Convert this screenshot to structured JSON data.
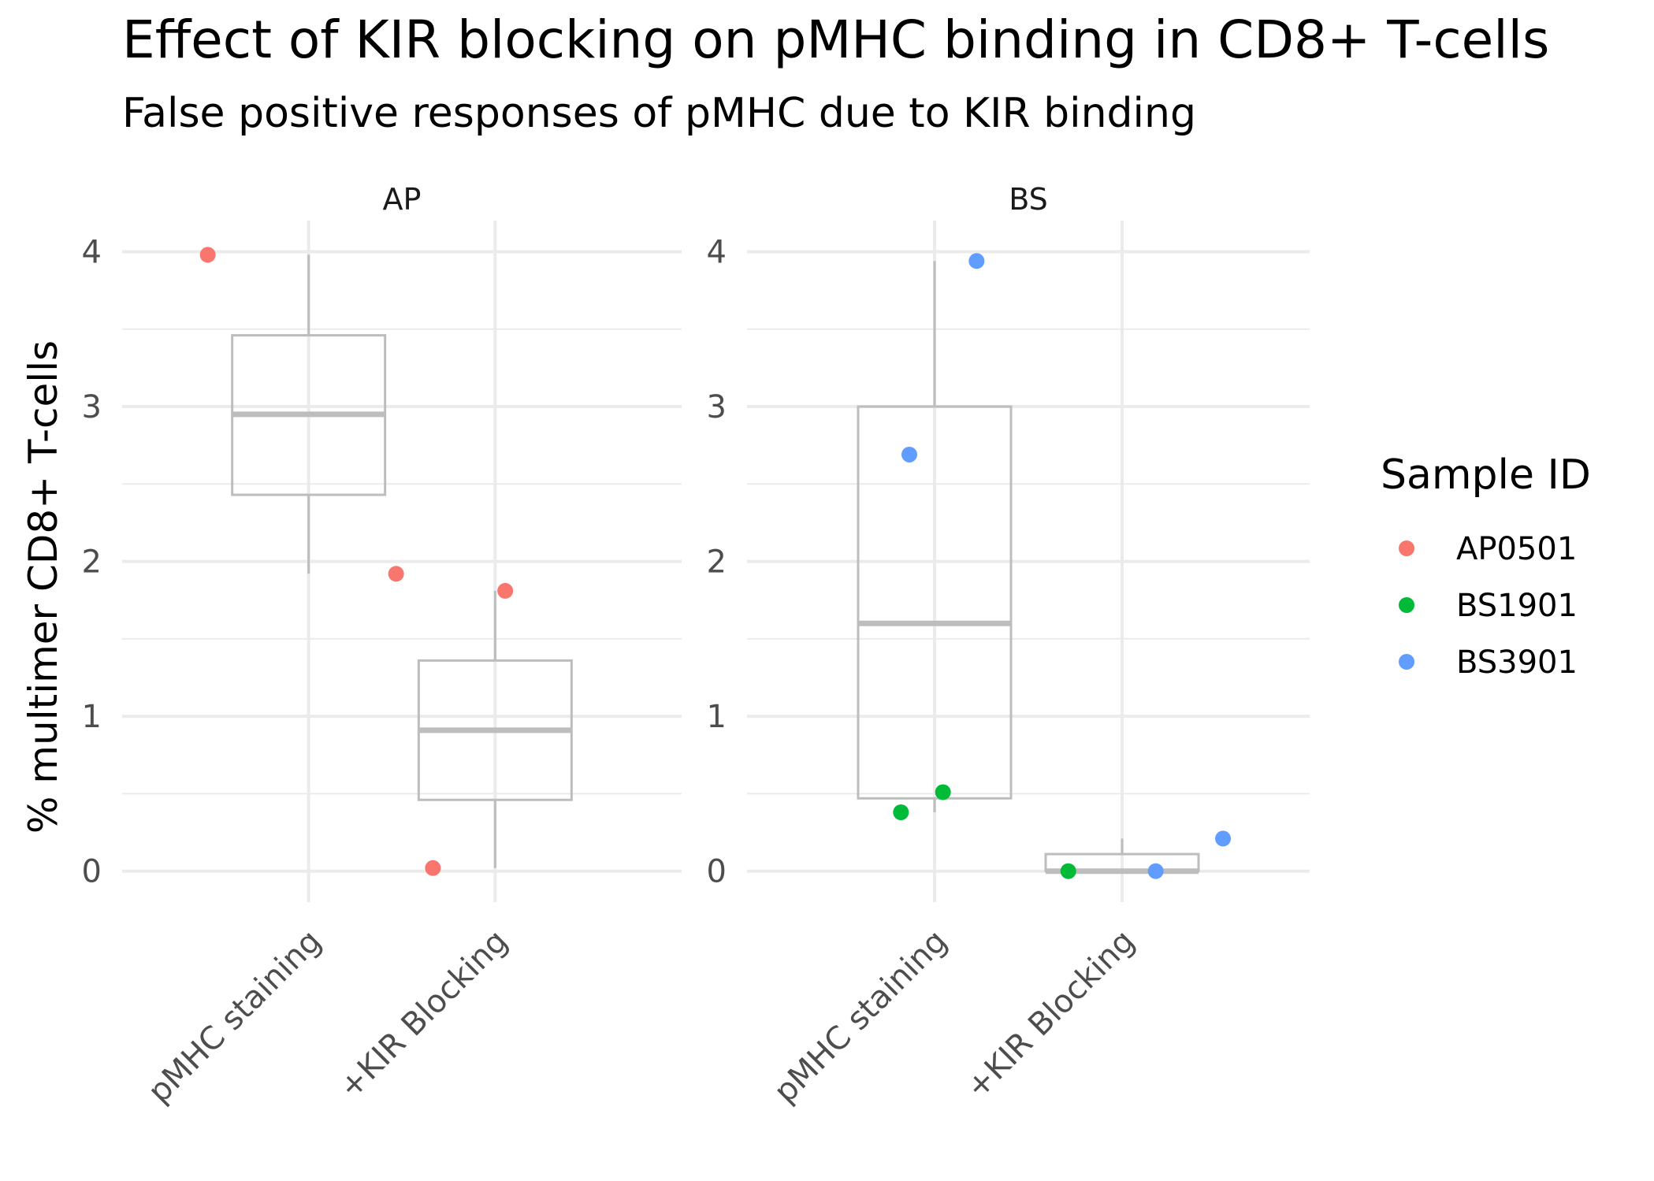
{
  "chart_data": {
    "type": "box",
    "title": "Effect of KIR blocking on pMHC binding in CD8+ T-cells",
    "subtitle": "False positive responses of pMHC due to KIR binding",
    "ylabel": "% multimer CD8+ T-cells",
    "xlabel": "",
    "categories": [
      "pMHC staining",
      "+KIR Blocking"
    ],
    "grid": true,
    "legend": {
      "title": "Sample ID",
      "placement": "right",
      "entries": [
        {
          "name": "AP0501",
          "color": "#F8766D"
        },
        {
          "name": "BS1901",
          "color": "#00BA38"
        },
        {
          "name": "BS3901",
          "color": "#619CFF"
        }
      ]
    },
    "box_color": "#bdbdbd",
    "panels": [
      {
        "name": "AP",
        "ylim": [
          -0.2,
          4.15
        ],
        "yticks": [
          0,
          1,
          2,
          3,
          4
        ],
        "boxes": [
          {
            "category": "pMHC staining",
            "min": 1.92,
            "q1": 2.43,
            "median": 2.95,
            "q3": 3.46,
            "max": 3.98
          },
          {
            "category": "+KIR Blocking",
            "min": 0.02,
            "q1": 0.46,
            "median": 0.91,
            "q3": 1.36,
            "max": 1.81
          }
        ],
        "points": [
          {
            "sample": "AP0501",
            "category": "pMHC staining",
            "jitter": -0.6,
            "y": 3.98
          },
          {
            "sample": "AP0501",
            "category": "pMHC staining",
            "jitter": 0.52,
            "y": 1.92
          },
          {
            "sample": "AP0501",
            "category": "+KIR Blocking",
            "jitter": -0.37,
            "y": 0.02
          },
          {
            "sample": "AP0501",
            "category": "+KIR Blocking",
            "jitter": 0.06,
            "y": 1.81
          }
        ]
      },
      {
        "name": "BS",
        "ylim": [
          -0.2,
          4.15
        ],
        "yticks": [
          0,
          1,
          2,
          3,
          4
        ],
        "boxes": [
          {
            "category": "pMHC staining",
            "min": 0.38,
            "q1": 0.47,
            "median": 1.6,
            "q3": 3.0,
            "max": 3.94
          },
          {
            "category": "+KIR Blocking",
            "min": 0.0,
            "q1": 0.0,
            "median": 0.0,
            "q3": 0.11,
            "max": 0.21
          }
        ],
        "points": [
          {
            "sample": "BS1901",
            "category": "pMHC staining",
            "jitter": -0.2,
            "y": 0.38
          },
          {
            "sample": "BS1901",
            "category": "pMHC staining",
            "jitter": 0.05,
            "y": 0.51
          },
          {
            "sample": "BS3901",
            "category": "pMHC staining",
            "jitter": -0.15,
            "y": 2.69
          },
          {
            "sample": "BS3901",
            "category": "pMHC staining",
            "jitter": 0.25,
            "y": 3.94
          },
          {
            "sample": "BS1901",
            "category": "+KIR Blocking",
            "jitter": -0.32,
            "y": 0.0
          },
          {
            "sample": "BS3901",
            "category": "+KIR Blocking",
            "jitter": 0.2,
            "y": 0.0
          },
          {
            "sample": "BS3901",
            "category": "+KIR Blocking",
            "jitter": 0.6,
            "y": 0.21
          }
        ]
      }
    ]
  }
}
